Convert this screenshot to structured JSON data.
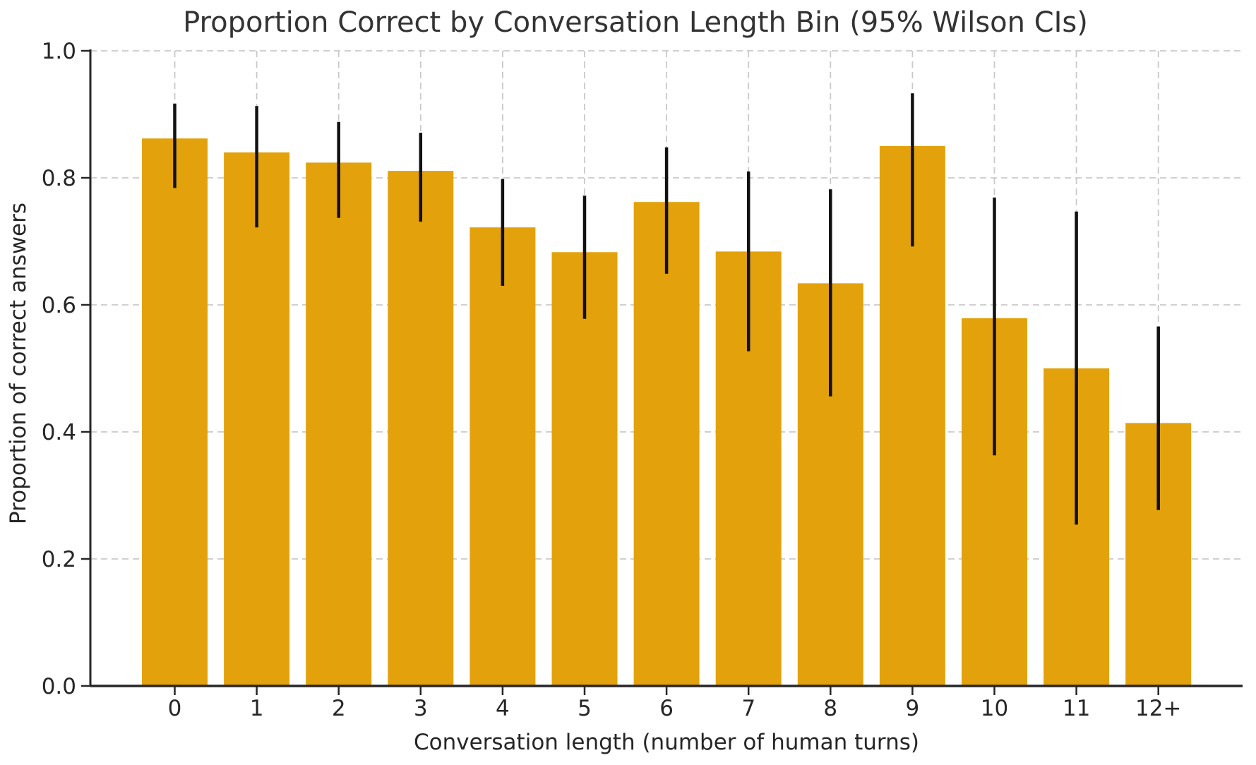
{
  "chart_data": {
    "type": "bar",
    "title": "Proportion Correct by Conversation Length Bin (95% Wilson CIs)",
    "xlabel": "Conversation length (number of human turns)",
    "ylabel": "Proportion of correct answers",
    "categories": [
      "0",
      "1",
      "2",
      "3",
      "4",
      "5",
      "6",
      "7",
      "8",
      "9",
      "10",
      "11",
      "12+"
    ],
    "values": [
      0.862,
      0.84,
      0.824,
      0.811,
      0.722,
      0.683,
      0.762,
      0.684,
      0.634,
      0.85,
      0.579,
      0.5,
      0.414
    ],
    "ci_low": [
      0.784,
      0.722,
      0.737,
      0.731,
      0.63,
      0.578,
      0.649,
      0.527,
      0.456,
      0.692,
      0.363,
      0.254,
      0.277
    ],
    "ci_high": [
      0.917,
      0.913,
      0.888,
      0.871,
      0.798,
      0.772,
      0.848,
      0.81,
      0.782,
      0.933,
      0.769,
      0.747,
      0.566
    ],
    "ylim": [
      0.0,
      1.0
    ],
    "ytick_labels": [
      "0.0",
      "0.2",
      "0.4",
      "0.6",
      "0.8",
      "1.0"
    ],
    "ytick_values": [
      0.0,
      0.2,
      0.4,
      0.6,
      0.8,
      1.0
    ],
    "grid": "dashed gray gridlines, horizontal at y ticks and vertical at each category",
    "legend": "none",
    "error_bars": "95% Wilson confidence intervals, black vertical lines, no caps",
    "colors": {
      "bar": "#E3A20C",
      "error_bar": "#111111",
      "gridline": "#c9c9c9",
      "spine": "#262626",
      "tick_text": "#262626",
      "title_text": "#333333",
      "background": "#ffffff"
    }
  }
}
